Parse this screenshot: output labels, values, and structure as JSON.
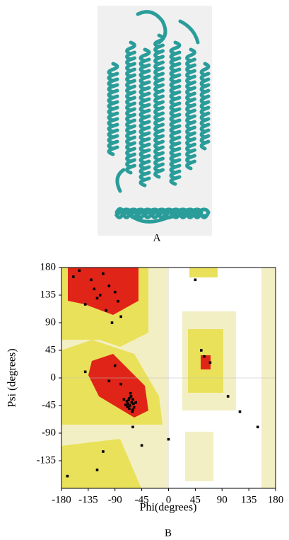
{
  "figure": {
    "panel_a_label": "A"
  },
  "chart_data": {
    "type": "scatter",
    "panel_label": "B",
    "x_label": "Phi(degrees)",
    "y_label": "Psi (degrees)",
    "xlim": [
      -180,
      180
    ],
    "ylim": [
      -180,
      180
    ],
    "xticks": [
      -180,
      -135,
      -90,
      -45,
      0,
      45,
      90,
      135,
      180
    ],
    "yticks": [
      -135,
      -90,
      -45,
      0,
      45,
      90,
      135,
      180
    ],
    "color": "#000000",
    "grid": false,
    "x": [
      -62,
      -65,
      -60,
      -68,
      -70,
      -58,
      -63,
      -66,
      -72,
      -61,
      -64,
      -67,
      -59,
      -69,
      -55,
      -75,
      -60,
      -66,
      -120,
      -100,
      -90,
      -130,
      -140,
      -110,
      -80,
      -95,
      -150,
      -85,
      -125,
      -105,
      -160,
      -115,
      -90,
      -140,
      -60,
      -100,
      60,
      55,
      70,
      -110,
      -45,
      120,
      150,
      -80,
      -120,
      -170,
      45,
      0,
      100
    ],
    "y": [
      -40,
      -45,
      -35,
      -42,
      -38,
      -48,
      -30,
      -50,
      -44,
      -55,
      -25,
      -36,
      -42,
      -47,
      -40,
      -35,
      -52,
      -33,
      130,
      150,
      140,
      160,
      120,
      170,
      100,
      90,
      175,
      125,
      145,
      110,
      165,
      135,
      20,
      10,
      -80,
      -5,
      35,
      45,
      25,
      -120,
      -110,
      -55,
      -80,
      -10,
      -150,
      -160,
      160,
      -100,
      -30
    ]
  }
}
